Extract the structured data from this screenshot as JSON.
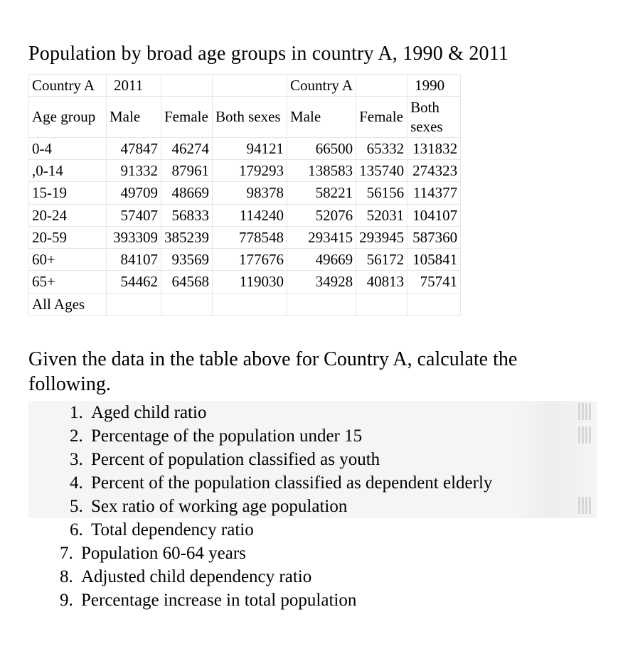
{
  "title": "Population by broad age groups in country A, 1990 & 2011",
  "table": {
    "group1": {
      "country": "Country A",
      "year": "2011"
    },
    "group2": {
      "country": "Country A",
      "year": "1990"
    },
    "cols": {
      "age": "Age group",
      "male": "Male",
      "female": "Female",
      "both": "Both sexes",
      "male2": "Male",
      "female2": "Female",
      "both2_l1": "Both",
      "both2_l2": "sexes"
    },
    "rows": [
      {
        "age": "0-4",
        "m": "47847",
        "f": "46274",
        "b": "94121",
        "m2": "66500",
        "f2": "65332",
        "b2": "131832"
      },
      {
        "age": ",0-14",
        "m": "91332",
        "f": "87961",
        "b": "179293",
        "m2": "138583",
        "f2": "135740",
        "b2": "274323"
      },
      {
        "age": "15-19",
        "m": "49709",
        "f": "48669",
        "b": "98378",
        "m2": "58221",
        "f2": "56156",
        "b2": "114377"
      },
      {
        "age": "20-24",
        "m": "57407",
        "f": "56833",
        "b": "114240",
        "m2": "52076",
        "f2": "52031",
        "b2": "104107"
      },
      {
        "age": "20-59",
        "m": "393309",
        "f": "385239",
        "b": "778548",
        "m2": "293415",
        "f2": "293945",
        "b2": "587360"
      },
      {
        "age": "60+",
        "m": "84107",
        "f": "93569",
        "b": "177676",
        "m2": "49669",
        "f2": "56172",
        "b2": "105841"
      },
      {
        "age": "65+",
        "m": "54462",
        "f": "64568",
        "b": "119030",
        "m2": "34928",
        "f2": "40813",
        "b2": "75741"
      },
      {
        "age": "All Ages",
        "m": "",
        "f": "",
        "b": "",
        "m2": "",
        "f2": "",
        "b2": ""
      }
    ]
  },
  "prompt": "Given the data in the table above for Country A, calculate the following.",
  "questions": [
    {
      "n": "1.",
      "t": "Aged child ratio",
      "indent": true,
      "shaded": true,
      "bars": true
    },
    {
      "n": "2.",
      "t": "Percentage of the population  under 15",
      "indent": true,
      "shaded": true,
      "bars": true
    },
    {
      "n": "3.",
      "t": "Percent of population classified as youth",
      "indent": true,
      "shaded": true,
      "bars": false
    },
    {
      "n": "4.",
      "t": "Percent of the population classified as dependent elderly",
      "indent": true,
      "shaded": true,
      "bars": false
    },
    {
      "n": "5.",
      "t": "Sex ratio of working age population",
      "indent": true,
      "shaded": true,
      "bars": true
    },
    {
      "n": "6.",
      "t": "Total dependency ratio",
      "indent": true,
      "shaded": false,
      "bars": false
    },
    {
      "n": "7.",
      "t": "Population 60-64 years",
      "indent": false,
      "shaded": false,
      "bars": false
    },
    {
      "n": "8.",
      "t": "Adjusted child dependency ratio",
      "indent": false,
      "shaded": false,
      "bars": false
    },
    {
      "n": "9.",
      "t": "Percentage increase in total population",
      "indent": false,
      "shaded": false,
      "bars": false
    }
  ],
  "style": {
    "text_color": "#000000",
    "border_color": "#e6e6e6",
    "shaded_bg": "#f5f5f6",
    "title_fontsize": 28,
    "table_fontsize": 21,
    "prompt_fontsize": 28,
    "question_fontsize": 25,
    "font_family": "Times New Roman"
  }
}
